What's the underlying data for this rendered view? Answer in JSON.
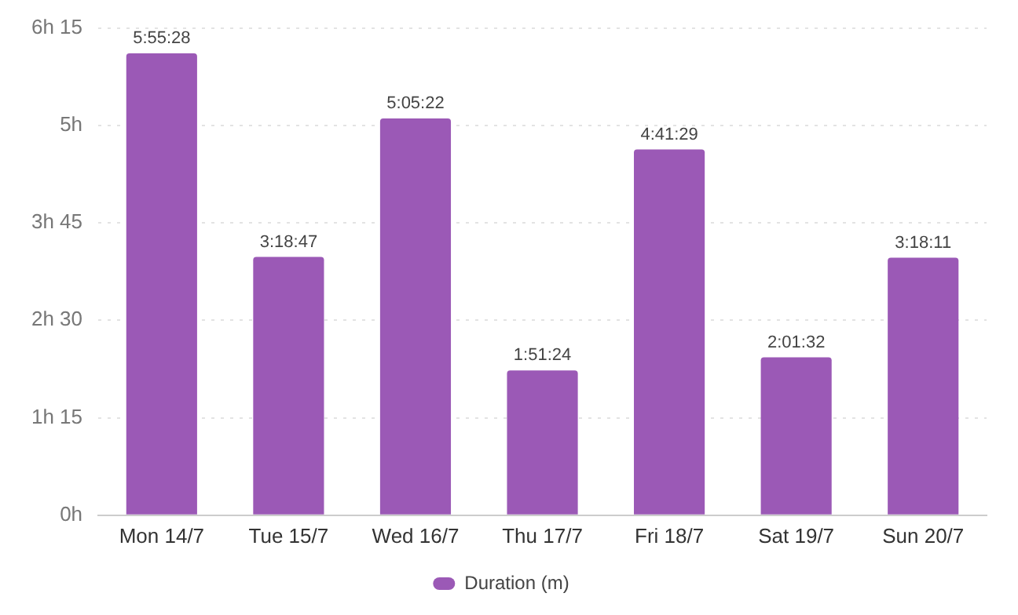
{
  "chart_data": {
    "type": "bar",
    "categories": [
      "Mon 14/7",
      "Tue 15/7",
      "Wed 16/7",
      "Thu 17/7",
      "Fri 18/7",
      "Sat 19/7",
      "Sun 20/7"
    ],
    "series": [
      {
        "name": "Duration (m)",
        "color": "#9b59b6",
        "values": [
          5.9244,
          3.3131,
          5.0894,
          1.8567,
          4.6914,
          2.0256,
          3.3031
        ],
        "value_labels": [
          "5:55:28",
          "3:18:47",
          "5:05:22",
          "1:51:24",
          "4:41:29",
          "2:01:32",
          "3:18:11"
        ]
      }
    ],
    "ylim": [
      0,
      6.25
    ],
    "yticks": [
      {
        "value": 0,
        "label": "0h"
      },
      {
        "value": 1.25,
        "label": "1h 15"
      },
      {
        "value": 2.5,
        "label": "2h 30"
      },
      {
        "value": 3.75,
        "label": "3h 45"
      },
      {
        "value": 5,
        "label": "5h"
      },
      {
        "value": 6.25,
        "label": "6h 15"
      }
    ],
    "grid": "y",
    "legend": "bottom"
  }
}
